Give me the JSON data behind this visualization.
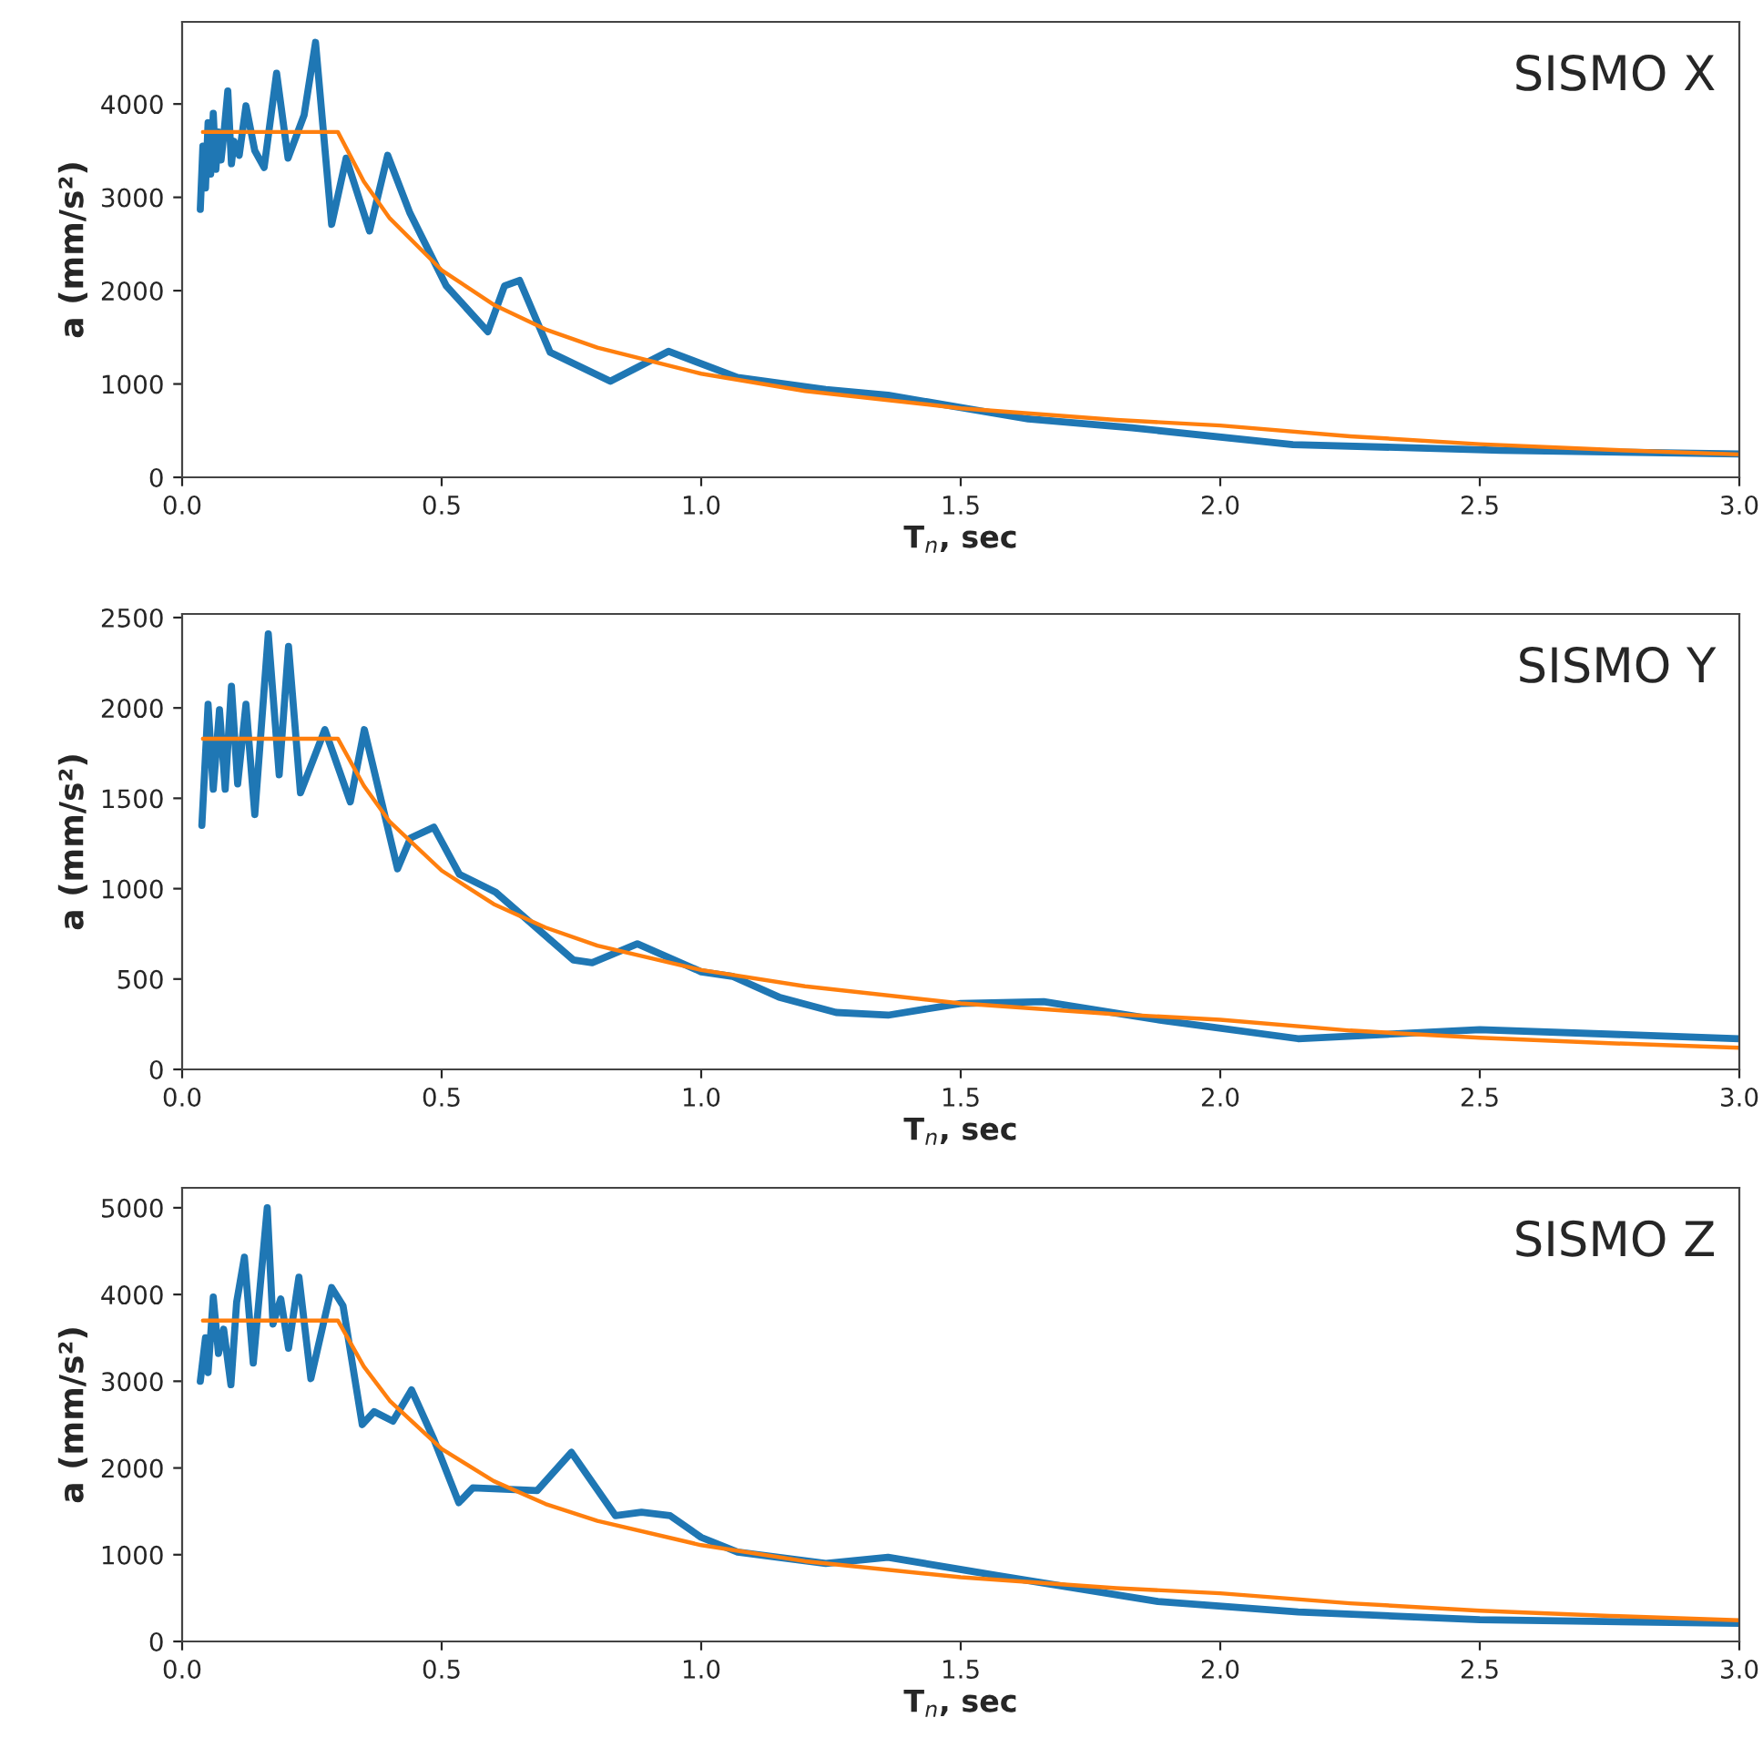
{
  "chart_data": [
    {
      "type": "line",
      "annotations": [
        "SISMO X"
      ],
      "xlabel": "T$_{n}$, sec",
      "ylabel": "a (mm/s²)",
      "xlim": [
        0,
        3.0
      ],
      "xticks": [
        {
          "value": 0,
          "label": "0.0"
        },
        0.5,
        {
          "value": 1,
          "label": "1.0"
        },
        1.5,
        {
          "value": 2,
          "label": "2.0"
        },
        2.5,
        {
          "value": 3,
          "label": "3.0"
        }
      ],
      "ylim": [
        0,
        4880
      ],
      "yticks": [
        0,
        1000,
        2000,
        3000,
        4000
      ],
      "grid": false,
      "legend": false,
      "series": [
        {
          "color": "#1f77b4",
          "x": [
            0.035,
            0.04,
            0.045,
            0.05,
            0.055,
            0.06,
            0.065,
            0.07,
            0.075,
            0.08,
            0.088,
            0.095,
            0.1,
            0.11,
            0.123,
            0.14,
            0.158,
            0.182,
            0.204,
            0.235,
            0.257,
            0.288,
            0.316,
            0.361,
            0.396,
            0.439,
            0.509,
            0.589,
            0.621,
            0.65,
            0.709,
            0.825,
            0.937,
            1.07,
            1.24,
            1.36,
            1.63,
            1.83,
            2.14,
            2.54,
            3.0
          ],
          "values": [
            2870,
            3550,
            3100,
            3800,
            3250,
            3900,
            3300,
            3700,
            3400,
            3650,
            4140,
            3360,
            3600,
            3450,
            3980,
            3500,
            3320,
            4330,
            3420,
            3880,
            4660,
            2710,
            3420,
            2640,
            3450,
            2830,
            2050,
            1560,
            2050,
            2110,
            1340,
            1030,
            1350,
            1070,
            940,
            880,
            625,
            530,
            350,
            290,
            250
          ]
        },
        {
          "color": "#ff7f0e",
          "x": [
            0.04,
            0.3,
            0.35,
            0.4,
            0.5,
            0.6,
            0.7,
            0.8,
            1.0,
            1.2,
            1.5,
            1.8,
            2.0,
            2.25,
            2.5,
            2.75,
            3.0
          ],
          "values": [
            3700,
            3700,
            3170,
            2775,
            2220,
            1850,
            1585,
            1390,
            1110,
            925,
            740,
            615,
            555,
            440,
            355,
            295,
            245
          ]
        }
      ]
    },
    {
      "type": "line",
      "annotations": [
        "SISMO Y"
      ],
      "xlabel": "T$_{n}$, sec",
      "ylabel": "a (mm/s²)",
      "xlim": [
        0,
        3.0
      ],
      "xticks": [
        {
          "value": 0,
          "label": "0.0"
        },
        0.5,
        {
          "value": 1,
          "label": "1.0"
        },
        1.5,
        {
          "value": 2,
          "label": "2.0"
        },
        2.5,
        {
          "value": 3,
          "label": "3.0"
        }
      ],
      "ylim": [
        0,
        2520
      ],
      "yticks": [
        0,
        500,
        1000,
        1500,
        2000,
        2500
      ],
      "grid": false,
      "legend": false,
      "series": [
        {
          "color": "#1f77b4",
          "x": [
            0.038,
            0.05,
            0.06,
            0.072,
            0.083,
            0.095,
            0.107,
            0.123,
            0.14,
            0.166,
            0.187,
            0.205,
            0.228,
            0.275,
            0.324,
            0.351,
            0.415,
            0.44,
            0.485,
            0.534,
            0.604,
            0.684,
            0.754,
            0.79,
            0.877,
            1.0,
            1.06,
            1.15,
            1.26,
            1.36,
            1.5,
            1.66,
            1.89,
            2.15,
            2.5,
            3.0
          ],
          "values": [
            1350,
            2020,
            1550,
            1990,
            1550,
            2120,
            1580,
            2020,
            1410,
            2410,
            1630,
            2340,
            1530,
            1880,
            1480,
            1880,
            1110,
            1280,
            1340,
            1080,
            980,
            780,
            605,
            590,
            695,
            540,
            515,
            400,
            315,
            300,
            365,
            375,
            270,
            170,
            220,
            170
          ]
        },
        {
          "color": "#ff7f0e",
          "x": [
            0.04,
            0.3,
            0.35,
            0.4,
            0.5,
            0.6,
            0.7,
            0.8,
            1.0,
            1.2,
            1.5,
            1.8,
            2.0,
            2.25,
            2.5,
            2.75,
            3.0
          ],
          "values": [
            1830,
            1830,
            1570,
            1370,
            1100,
            915,
            785,
            685,
            550,
            460,
            365,
            305,
            275,
            215,
            175,
            145,
            120
          ]
        }
      ]
    },
    {
      "type": "line",
      "annotations": [
        "SISMO Z"
      ],
      "xlabel": "T$_{n}$, sec",
      "ylabel": "a (mm/s²)",
      "xlim": [
        0,
        3.0
      ],
      "xticks": [
        {
          "value": 0,
          "label": "0.0"
        },
        0.5,
        {
          "value": 1,
          "label": "1.0"
        },
        1.5,
        {
          "value": 2,
          "label": "2.0"
        },
        2.5,
        {
          "value": 3,
          "label": "3.0"
        }
      ],
      "ylim": [
        0,
        5230
      ],
      "yticks": [
        0,
        1000,
        2000,
        3000,
        4000,
        5000
      ],
      "grid": false,
      "legend": false,
      "series": [
        {
          "color": "#1f77b4",
          "x": [
            0.035,
            0.045,
            0.05,
            0.06,
            0.07,
            0.08,
            0.094,
            0.105,
            0.12,
            0.137,
            0.164,
            0.175,
            0.19,
            0.205,
            0.225,
            0.248,
            0.288,
            0.31,
            0.347,
            0.37,
            0.406,
            0.442,
            0.485,
            0.533,
            0.56,
            0.684,
            0.75,
            0.835,
            0.885,
            0.94,
            1.0,
            1.07,
            1.24,
            1.36,
            1.57,
            1.88,
            2.15,
            2.5,
            3.0
          ],
          "values": [
            3000,
            3500,
            3100,
            3970,
            3320,
            3600,
            2960,
            3910,
            4430,
            3210,
            5000,
            3660,
            3950,
            3380,
            4200,
            3030,
            4080,
            3870,
            2500,
            2650,
            2540,
            2900,
            2330,
            1600,
            1770,
            1740,
            2180,
            1450,
            1490,
            1450,
            1200,
            1030,
            900,
            970,
            760,
            460,
            340,
            250,
            210
          ]
        },
        {
          "color": "#ff7f0e",
          "x": [
            0.04,
            0.3,
            0.35,
            0.4,
            0.5,
            0.6,
            0.7,
            0.8,
            1.0,
            1.2,
            1.5,
            1.8,
            2.0,
            2.25,
            2.5,
            2.75,
            3.0
          ],
          "values": [
            3700,
            3700,
            3170,
            2775,
            2220,
            1850,
            1585,
            1390,
            1110,
            925,
            740,
            615,
            555,
            440,
            355,
            295,
            245
          ]
        }
      ]
    }
  ]
}
